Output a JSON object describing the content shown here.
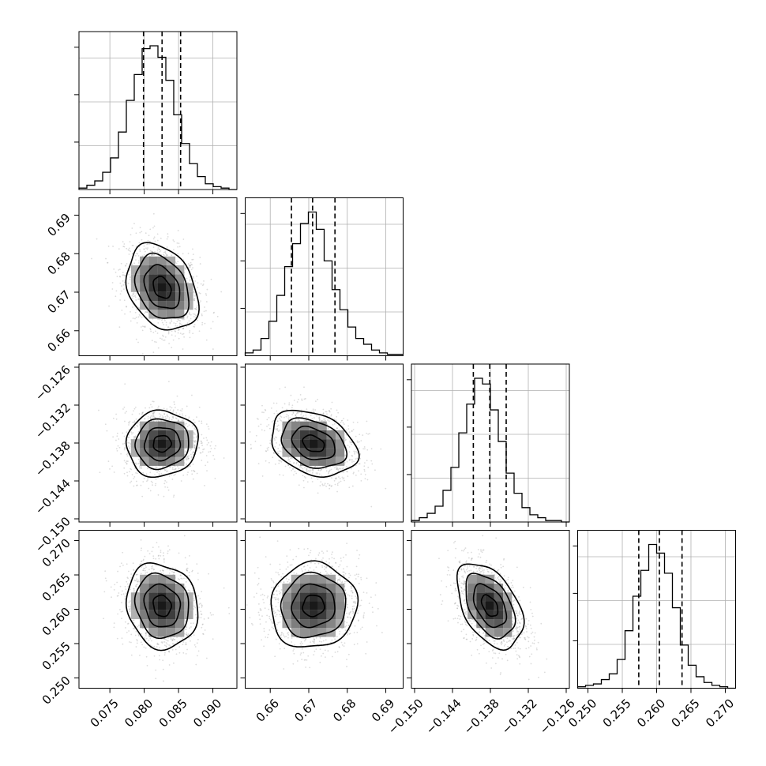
{
  "chart_data": {
    "type": "corner",
    "parameters": [
      {
        "range": [
          0.0705,
          0.0935
        ],
        "ticks": [
          0.075,
          0.08,
          0.085,
          0.09
        ],
        "tick_labels": [
          "0.075",
          "0.080",
          "0.085",
          "0.090"
        ],
        "quantiles": [
          0.0799,
          0.0826,
          0.0853
        ],
        "mean": 0.0826,
        "std": 0.0026
      },
      {
        "range": [
          0.6535,
          0.6945
        ],
        "ticks": [
          0.66,
          0.67,
          0.68,
          0.69
        ],
        "tick_labels": [
          "0.66",
          "0.67",
          "0.68",
          "0.69"
        ],
        "quantiles": [
          0.6655,
          0.671,
          0.6768
        ],
        "mean": 0.6712,
        "std": 0.0056
      },
      {
        "range": [
          -0.1505,
          -0.1255
        ],
        "ticks": [
          -0.15,
          -0.144,
          -0.138,
          -0.132,
          -0.126
        ],
        "tick_labels": [
          "−0.150",
          "−0.144",
          "−0.138",
          "−0.132",
          "−0.126"
        ],
        "quantiles": [
          -0.1407,
          -0.1381,
          -0.1355
        ],
        "mean": -0.1381,
        "std": 0.0026
      },
      {
        "range": [
          0.2485,
          0.2715
        ],
        "ticks": [
          0.25,
          0.255,
          0.26,
          0.265,
          0.27
        ],
        "tick_labels": [
          "0.250",
          "0.255",
          "0.260",
          "0.265",
          "0.270"
        ],
        "quantiles": [
          0.2574,
          0.2604,
          0.2637
        ],
        "mean": 0.2605,
        "std": 0.0031
      }
    ],
    "histograms": [
      {
        "param": 0,
        "counts": [
          1,
          3,
          6,
          12,
          22,
          40,
          62,
          80,
          98,
          100,
          92,
          76,
          52,
          32,
          18,
          9,
          4,
          2,
          1,
          0
        ]
      },
      {
        "param": 1,
        "counts": [
          2,
          4,
          12,
          24,
          42,
          62,
          78,
          92,
          100,
          88,
          66,
          46,
          32,
          20,
          12,
          8,
          4,
          2,
          1,
          1
        ]
      },
      {
        "param": 2,
        "counts": [
          1,
          3,
          6,
          11,
          22,
          38,
          62,
          82,
          100,
          96,
          78,
          56,
          34,
          20,
          10,
          5,
          3,
          1,
          1,
          0
        ]
      },
      {
        "param": 3,
        "counts": [
          1,
          2,
          3,
          6,
          10,
          20,
          40,
          64,
          82,
          100,
          94,
          80,
          56,
          30,
          16,
          8,
          4,
          2,
          1,
          0
        ]
      }
    ],
    "correlations": [
      {
        "x": 0,
        "y": 1,
        "rho": -0.3
      },
      {
        "x": 0,
        "y": 2,
        "rho": 0.05
      },
      {
        "x": 1,
        "y": 2,
        "rho": -0.3
      },
      {
        "x": 0,
        "y": 3,
        "rho": -0.12
      },
      {
        "x": 1,
        "y": 3,
        "rho": 0.05
      },
      {
        "x": 2,
        "y": 3,
        "rho": -0.45
      }
    ],
    "contour_levels_sigma": [
      0.5,
      1.0,
      1.5,
      2.0
    ],
    "grid": true,
    "xlabel": "",
    "ylabel": "",
    "title": ""
  }
}
